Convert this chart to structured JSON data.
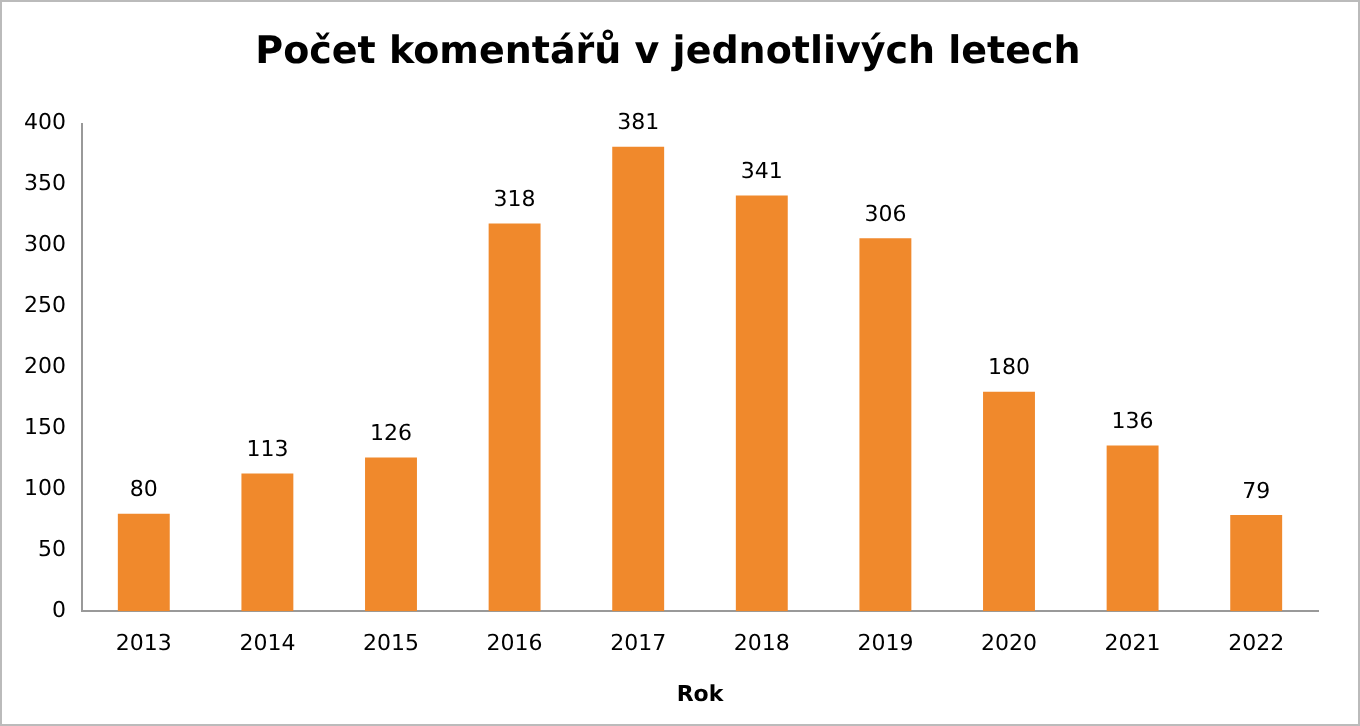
{
  "chart_data": {
    "type": "bar",
    "title": "Počet komentářů v jednotlivých letech",
    "xlabel": "Rok",
    "categories": [
      "2013",
      "2014",
      "2015",
      "2016",
      "2017",
      "2018",
      "2019",
      "2020",
      "2021",
      "2022"
    ],
    "values": [
      80,
      113,
      126,
      318,
      381,
      341,
      306,
      180,
      136,
      79
    ],
    "color": "#f0892c",
    "ylim": [
      0,
      400
    ],
    "yticks": [
      0,
      50,
      100,
      150,
      200,
      250,
      300,
      350,
      400
    ],
    "grid": false,
    "legend": false,
    "data_labels": true
  }
}
